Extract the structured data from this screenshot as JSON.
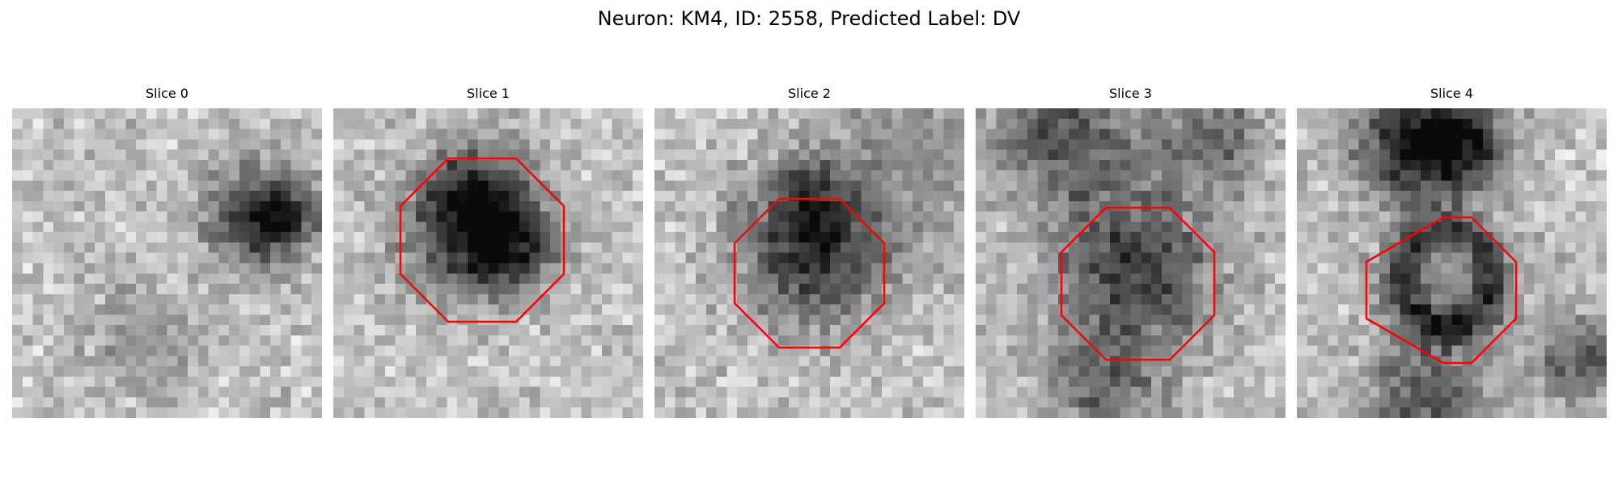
{
  "figure": {
    "title": "Neuron: KM4, ID: 2558, Predicted Label: DV",
    "outline_color": "#ff0000"
  },
  "panels": [
    {
      "title": "Slice 0",
      "outlined": false
    },
    {
      "title": "Slice 1",
      "outlined": true
    },
    {
      "title": "Slice 2",
      "outlined": true
    },
    {
      "title": "Slice 3",
      "outlined": true
    },
    {
      "title": "Slice 4",
      "outlined": true
    }
  ]
}
